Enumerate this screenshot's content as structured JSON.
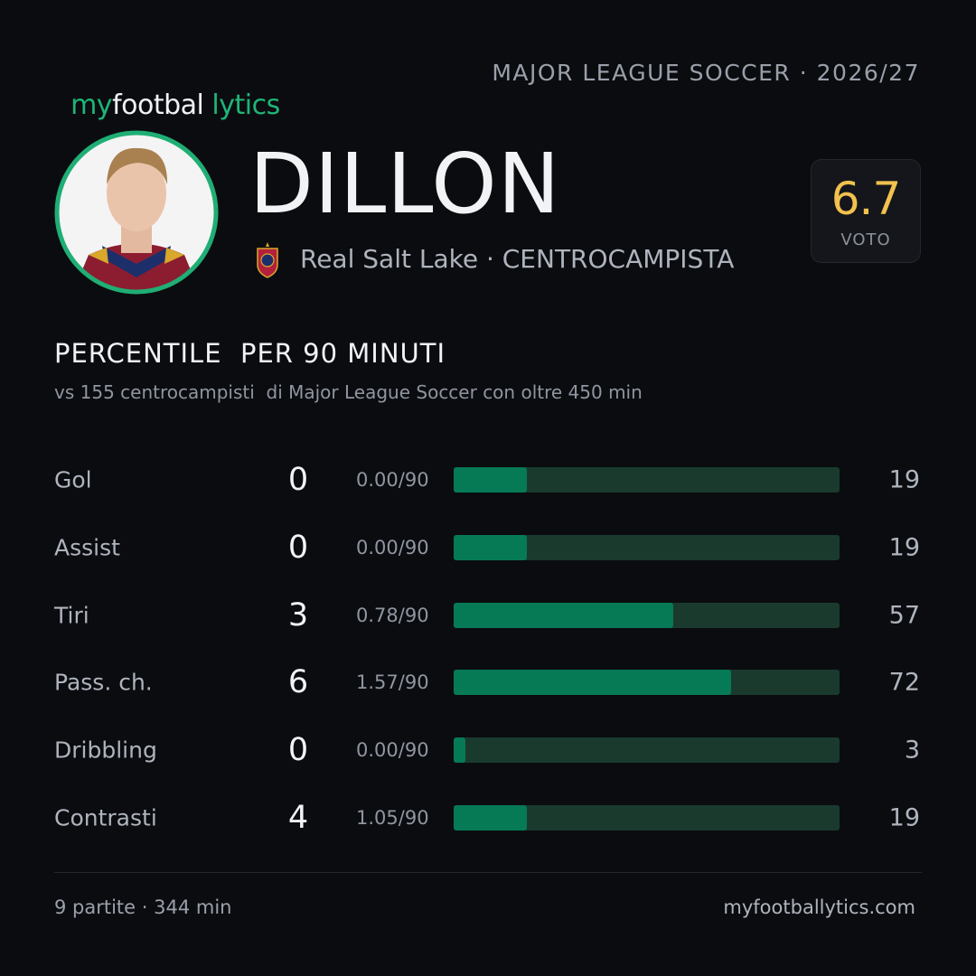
{
  "header": {
    "logo": [
      "my",
      "footbal",
      "lytics"
    ],
    "league": "MAJOR LEAGUE SOCCER · 2026/27"
  },
  "player": {
    "name": "DILLON",
    "team_line": "Real Salt Lake · CENTROCAMPISTA",
    "rating": 6.7,
    "rating_label": "VOTO"
  },
  "section": {
    "title": "PERCENTILE  PER 90 MINUTI",
    "subtitle": "vs 155 centrocampisti  di Major League Soccer con oltre 450 min"
  },
  "stats": {
    "xlim": [
      0,
      100
    ],
    "rows": [
      {
        "label": "Gol",
        "total": 0,
        "per90": "0.00/90",
        "percentile": 19
      },
      {
        "label": "Assist",
        "total": 0,
        "per90": "0.00/90",
        "percentile": 19
      },
      {
        "label": "Tiri",
        "total": 3,
        "per90": "0.78/90",
        "percentile": 57
      },
      {
        "label": "Pass. ch.",
        "total": 6,
        "per90": "1.57/90",
        "percentile": 72
      },
      {
        "label": "Dribbling",
        "total": 0,
        "per90": "0.00/90",
        "percentile": 3
      },
      {
        "label": "Contrasti",
        "total": 4,
        "per90": "1.05/90",
        "percentile": 19
      }
    ]
  },
  "footer": {
    "matches": "9 partite · 344 min",
    "site": "myfootballytics.com"
  }
}
